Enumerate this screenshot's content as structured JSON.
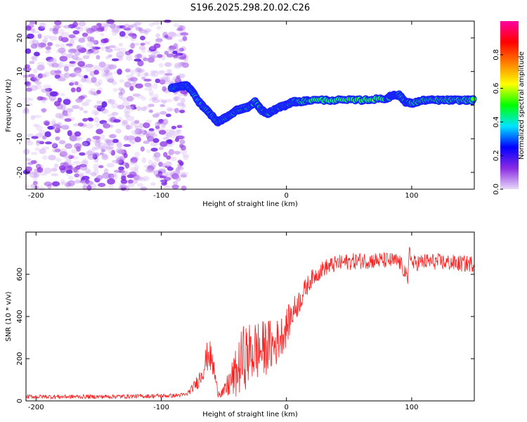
{
  "title": "S196.2025.298.20.02.C26",
  "chart_data": [
    {
      "type": "heatmap",
      "title": "S196.2025.298.20.02.C26",
      "xlabel": "Height of straight line (km)",
      "ylabel": "Frequency (Hz)",
      "xlim": [
        -208,
        150
      ],
      "ylim": [
        -25,
        25
      ],
      "xticks": [
        -200,
        -100,
        0,
        100
      ],
      "yticks": [
        -20,
        -10,
        0,
        10,
        20
      ],
      "colorbar": {
        "label": "Normalized spectral amplitude",
        "range": [
          0,
          1
        ],
        "ticks": [
          0.0,
          0.2,
          0.4,
          0.6,
          0.8
        ],
        "colors": [
          "#e8d8f8",
          "#8a2be2",
          "#0000ff",
          "#00e5ff",
          "#00ff00",
          "#ffff00",
          "#ff8000",
          "#ff0000",
          "#ff00a0"
        ]
      },
      "noise_region": {
        "x_range": [
          -208,
          -80
        ],
        "y_range": [
          -25,
          25
        ],
        "amplitude": [
          0.0,
          0.15
        ]
      },
      "ridge": {
        "x": [
          -92,
          -85,
          -80,
          -75,
          -70,
          -65,
          -60,
          -55,
          -50,
          -45,
          -40,
          -35,
          -30,
          -25,
          -20,
          -15,
          -10,
          -5,
          0,
          5,
          10,
          20,
          40,
          60,
          80,
          85,
          90,
          95,
          100,
          110,
          120,
          130,
          140,
          150
        ],
        "y": [
          5,
          5.5,
          6,
          4,
          1,
          -1,
          -3,
          -5,
          -4,
          -3,
          -1.5,
          -1,
          -0.5,
          1,
          -1.5,
          -2.5,
          -1.5,
          -0.5,
          0,
          1,
          1,
          1.5,
          1.5,
          1.5,
          2,
          3,
          3,
          1,
          0.5,
          1.5,
          1.5,
          1.5,
          1.5,
          1.5
        ],
        "amplitude": [
          0.4,
          0.6,
          0.5,
          0.45,
          0.4,
          0.45,
          0.5,
          0.45,
          0.5,
          0.55,
          0.5,
          0.6,
          0.55,
          0.5,
          0.45,
          0.55,
          0.6,
          0.7,
          0.6,
          0.75,
          0.6,
          0.45,
          0.45,
          0.5,
          0.8,
          0.85,
          0.7,
          0.6,
          0.5,
          0.85,
          0.9,
          0.85,
          0.6,
          0.55
        ]
      }
    },
    {
      "type": "line",
      "xlabel": "Height of straight line (km)",
      "ylabel": "SNR (10 * v/v)",
      "xlim": [
        -208,
        150
      ],
      "ylim": [
        0,
        800
      ],
      "xticks": [
        -200,
        -100,
        0,
        100
      ],
      "yticks": [
        0,
        200,
        400,
        600
      ],
      "series": [
        {
          "name": "SNR",
          "color": "#ff2020",
          "x": [
            -208,
            -180,
            -150,
            -120,
            -90,
            -80,
            -75,
            -70,
            -66,
            -62,
            -58,
            -55,
            -50,
            -45,
            -40,
            -35,
            -30,
            -25,
            -20,
            -15,
            -10,
            -5,
            0,
            5,
            10,
            15,
            20,
            30,
            40,
            50,
            60,
            70,
            80,
            90,
            95,
            97,
            98,
            100,
            110,
            120,
            130,
            140,
            150
          ],
          "y": [
            20,
            20,
            20,
            22,
            25,
            30,
            60,
            100,
            160,
            230,
            150,
            40,
            40,
            90,
            130,
            200,
            220,
            240,
            240,
            260,
            260,
            300,
            350,
            420,
            470,
            530,
            580,
            630,
            650,
            660,
            665,
            665,
            665,
            660,
            610,
            540,
            750,
            650,
            660,
            660,
            655,
            650,
            650
          ],
          "noise_amplitude": [
            10,
            10,
            10,
            10,
            10,
            10,
            20,
            40,
            60,
            80,
            60,
            20,
            30,
            80,
            120,
            160,
            150,
            150,
            140,
            130,
            120,
            100,
            90,
            70,
            60,
            50,
            40,
            40,
            40,
            40,
            40,
            40,
            40,
            40,
            40,
            40,
            40,
            40,
            40,
            40,
            40,
            40,
            40
          ]
        }
      ]
    }
  ]
}
